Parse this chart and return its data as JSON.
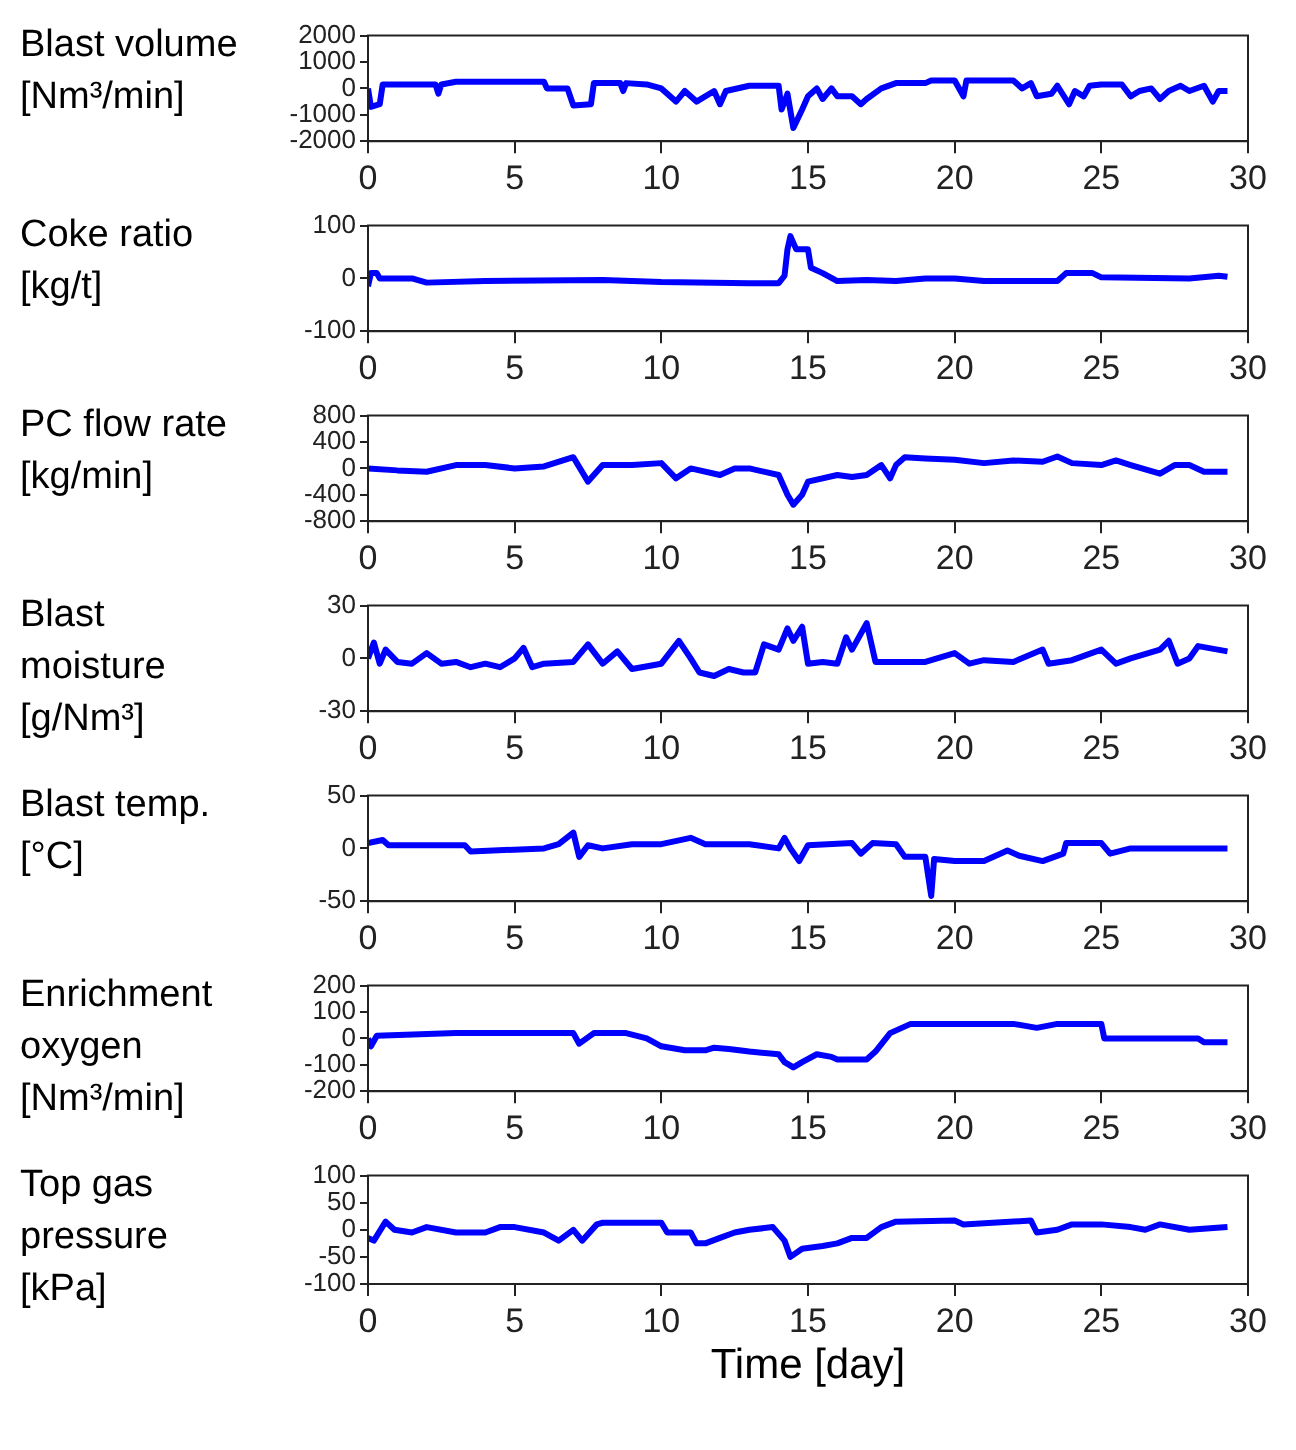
{
  "chart_data": [
    {
      "type": "line",
      "ylabel": "Blast volume [Nm³/min]",
      "xlim": [
        0,
        30
      ],
      "xticks": [
        0,
        5,
        10,
        15,
        20,
        25,
        30
      ],
      "ylim": [
        -2000,
        2000
      ],
      "yticks": [
        -2000,
        -1000,
        0,
        1000,
        2000
      ],
      "grid": false,
      "marker": "none",
      "x": [
        0,
        0.1,
        0.4,
        0.5,
        2.3,
        2.4,
        2.5,
        3,
        6,
        6.1,
        6.8,
        7,
        7.6,
        7.7,
        8.6,
        8.7,
        8.8,
        9.5,
        10,
        10.5,
        10.8,
        11.2,
        11.8,
        12,
        12.2,
        13,
        14,
        14.1,
        14.3,
        14.5,
        14.8,
        15,
        15.3,
        15.5,
        15.8,
        16,
        16.5,
        16.8,
        17,
        17.5,
        18,
        19,
        19.2,
        20,
        20.3,
        20.4,
        21,
        22,
        22.3,
        22.6,
        22.8,
        23.3,
        23.5,
        23.9,
        24.1,
        24.4,
        24.6,
        25,
        25.7,
        26,
        26.3,
        26.7,
        27,
        27.3,
        27.7,
        28,
        28.5,
        28.8,
        29,
        29.3
      ],
      "series": [
        {
          "color": "#0000ff",
          "values": [
            0,
            -700,
            -600,
            150,
            150,
            -200,
            150,
            250,
            250,
            0,
            0,
            -650,
            -600,
            200,
            200,
            -100,
            200,
            150,
            0,
            -500,
            -100,
            -500,
            -100,
            -600,
            -100,
            100,
            100,
            -800,
            -200,
            -1500,
            -800,
            -300,
            0,
            -400,
            0,
            -300,
            -300,
            -600,
            -400,
            0,
            200,
            200,
            300,
            300,
            -300,
            300,
            300,
            300,
            0,
            200,
            -300,
            -200,
            100,
            -600,
            -100,
            -300,
            100,
            150,
            150,
            -300,
            -100,
            0,
            -400,
            -100,
            100,
            -100,
            100,
            -500,
            -100,
            -100
          ]
        }
      ]
    },
    {
      "type": "line",
      "ylabel": "Coke ratio [kg/t]",
      "xlim": [
        0,
        30
      ],
      "xticks": [
        0,
        5,
        10,
        15,
        20,
        25,
        30
      ],
      "ylim": [
        -100,
        100
      ],
      "yticks": [
        -100,
        0,
        100
      ],
      "grid": false,
      "marker": "none",
      "x": [
        0,
        0.1,
        0.3,
        0.4,
        1.5,
        2,
        4,
        8,
        10,
        13,
        14,
        14.2,
        14.3,
        14.4,
        14.6,
        15,
        15.1,
        15.5,
        16,
        17,
        18,
        19,
        20,
        21,
        23.5,
        23.8,
        24.7,
        25,
        28,
        29,
        29.3
      ],
      "series": [
        {
          "color": "#0000ff",
          "values": [
            -15,
            10,
            10,
            0,
            0,
            -8,
            -5,
            -3,
            -7,
            -9,
            -9,
            5,
            55,
            80,
            55,
            55,
            20,
            10,
            -5,
            -3,
            -5,
            0,
            0,
            -5,
            -5,
            10,
            10,
            2,
            0,
            5,
            3
          ]
        }
      ]
    },
    {
      "type": "line",
      "ylabel": "PC flow rate [kg/min]",
      "xlim": [
        0,
        30
      ],
      "xticks": [
        0,
        5,
        10,
        15,
        20,
        25,
        30
      ],
      "ylim": [
        -800,
        800
      ],
      "yticks": [
        -800,
        -400,
        0,
        400,
        800
      ],
      "grid": false,
      "marker": "none",
      "x": [
        0,
        1,
        2,
        3,
        4,
        5,
        6,
        7,
        7.5,
        8,
        9,
        10,
        10.5,
        11,
        12,
        12.5,
        13,
        14,
        14.3,
        14.5,
        14.8,
        15,
        16,
        16.5,
        17,
        17.5,
        17.8,
        18,
        18.3,
        19,
        20,
        21,
        22,
        23,
        23.5,
        24,
        25,
        25.5,
        26,
        27,
        27.5,
        28,
        28.5,
        29.3
      ],
      "series": [
        {
          "color": "#0000ff",
          "values": [
            0,
            -30,
            -50,
            50,
            50,
            0,
            30,
            170,
            -200,
            50,
            50,
            80,
            -150,
            0,
            -100,
            0,
            0,
            -100,
            -400,
            -550,
            -400,
            -200,
            -100,
            -130,
            -100,
            50,
            -150,
            50,
            170,
            150,
            130,
            80,
            120,
            100,
            180,
            80,
            50,
            120,
            50,
            -80,
            50,
            50,
            -50,
            -50
          ]
        }
      ]
    },
    {
      "type": "line",
      "ylabel": "Blast moisture [g/Nm³]",
      "xlim": [
        0,
        30
      ],
      "xticks": [
        0,
        5,
        10,
        15,
        20,
        25,
        30
      ],
      "ylim": [
        -30,
        30
      ],
      "yticks": [
        -30,
        0,
        30
      ],
      "grid": false,
      "marker": "none",
      "x": [
        0,
        0.2,
        0.4,
        0.6,
        1,
        1.5,
        2,
        2.5,
        3,
        3.5,
        4,
        4.5,
        5,
        5.3,
        5.6,
        6,
        7,
        7.5,
        8,
        8.5,
        9,
        10,
        10.6,
        11,
        11.3,
        11.8,
        12.3,
        12.8,
        13.2,
        13.5,
        14,
        14.3,
        14.5,
        14.8,
        15,
        15.5,
        16,
        16.3,
        16.5,
        17,
        17.3,
        18,
        19,
        20,
        20.5,
        21,
        22,
        23,
        23.2,
        24,
        25,
        25.5,
        26,
        27,
        27.3,
        27.6,
        28,
        28.3,
        29.3
      ],
      "series": [
        {
          "color": "#0000ff",
          "values": [
            0,
            9,
            -3,
            5,
            -2,
            -3,
            3,
            -3,
            -2,
            -5,
            -3,
            -5,
            0,
            6,
            -5,
            -3,
            -2,
            8,
            -3,
            4,
            -6,
            -3,
            10,
            0,
            -8,
            -10,
            -6,
            -8,
            -8,
            8,
            5,
            17,
            10,
            18,
            -3,
            -2,
            -3,
            12,
            5,
            20,
            -2,
            -2,
            -2,
            3,
            -3,
            -1,
            -2,
            5,
            -3,
            -1,
            5,
            -3,
            0,
            5,
            10,
            -3,
            0,
            7,
            4
          ]
        }
      ]
    },
    {
      "type": "line",
      "ylabel": "Blast temp. [°C]",
      "xlim": [
        0,
        30
      ],
      "xticks": [
        0,
        5,
        10,
        15,
        20,
        25,
        30
      ],
      "ylim": [
        -50,
        50
      ],
      "yticks": [
        -50,
        0,
        50
      ],
      "grid": false,
      "marker": "none",
      "x": [
        0,
        0.5,
        0.7,
        3.3,
        3.5,
        6,
        6.5,
        7,
        7.2,
        7.5,
        8,
        9,
        10,
        11,
        11.5,
        13,
        14,
        14.2,
        14.4,
        14.7,
        15,
        16.5,
        16.8,
        17.2,
        18,
        18.3,
        19,
        19.2,
        19.3,
        20,
        21,
        21.8,
        22.2,
        23,
        23.7,
        23.8,
        25,
        25.3,
        26,
        29.3
      ],
      "series": [
        {
          "color": "#0000ff",
          "values": [
            5,
            8,
            3,
            3,
            -3,
            0,
            4,
            15,
            -8,
            3,
            0,
            4,
            4,
            10,
            4,
            4,
            0,
            10,
            0,
            -12,
            3,
            5,
            -5,
            5,
            4,
            -8,
            -8,
            -45,
            -10,
            -12,
            -12,
            -2,
            -7,
            -12,
            -5,
            5,
            5,
            -5,
            0,
            0
          ]
        }
      ]
    },
    {
      "type": "line",
      "ylabel": "Enrichment oxygen [Nm³/min]",
      "xlim": [
        0,
        30
      ],
      "xticks": [
        0,
        5,
        10,
        15,
        20,
        25,
        30
      ],
      "ylim": [
        -200,
        200
      ],
      "yticks": [
        -200,
        -100,
        0,
        100,
        200
      ],
      "grid": false,
      "marker": "none",
      "x": [
        0,
        0.1,
        0.3,
        3,
        7,
        7.2,
        7.7,
        8.8,
        9.5,
        10,
        10.8,
        11.5,
        11.8,
        12.3,
        13,
        14,
        14.2,
        14.5,
        14.8,
        15.3,
        15.8,
        16,
        17,
        17.3,
        17.8,
        18.5,
        20,
        22,
        22.8,
        23.5,
        25,
        25.1,
        27,
        28.3,
        28.5,
        29.3
      ],
      "series": [
        {
          "color": "#0000ff",
          "values": [
            0,
            -30,
            10,
            20,
            20,
            -20,
            20,
            20,
            0,
            -30,
            -45,
            -45,
            -35,
            -40,
            -50,
            -60,
            -90,
            -110,
            -90,
            -60,
            -70,
            -80,
            -80,
            -50,
            20,
            55,
            55,
            55,
            40,
            55,
            55,
            0,
            0,
            0,
            -15,
            -15
          ]
        }
      ]
    },
    {
      "type": "line",
      "ylabel": "Top gas pressure [kPa]",
      "xlabel": "Time [day]",
      "xlim": [
        0,
        30
      ],
      "xticks": [
        0,
        5,
        10,
        15,
        20,
        25,
        30
      ],
      "ylim": [
        -100,
        100
      ],
      "yticks": [
        -100,
        -50,
        0,
        50,
        100
      ],
      "grid": false,
      "marker": "none",
      "x": [
        0,
        0.2,
        0.6,
        0.9,
        1.5,
        2,
        3,
        4,
        4.5,
        5,
        6,
        6.5,
        7,
        7.3,
        7.8,
        8,
        10,
        10.2,
        11,
        11.2,
        11.5,
        12,
        12.5,
        13,
        13.8,
        14.2,
        14.4,
        14.8,
        15.5,
        16,
        16.5,
        17,
        17.5,
        18,
        20,
        20.3,
        22.6,
        22.8,
        23.5,
        24,
        25,
        26,
        26.5,
        27,
        28,
        29.3
      ],
      "series": [
        {
          "color": "#0000ff",
          "values": [
            -15,
            -20,
            15,
            0,
            -5,
            5,
            -5,
            -5,
            5,
            5,
            -5,
            -20,
            0,
            -20,
            10,
            13,
            13,
            -5,
            -5,
            -25,
            -25,
            -15,
            -5,
            0,
            5,
            -20,
            -50,
            -35,
            -30,
            -25,
            -15,
            -15,
            5,
            15,
            17,
            10,
            17,
            -5,
            0,
            10,
            10,
            5,
            0,
            10,
            0,
            5
          ]
        }
      ]
    }
  ]
}
